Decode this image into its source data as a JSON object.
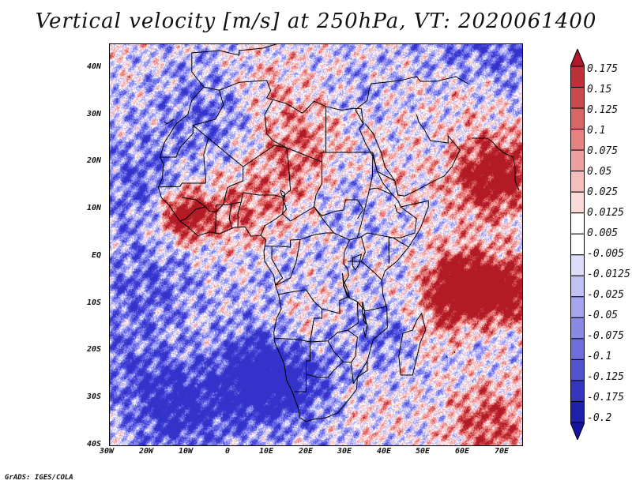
{
  "title": "Vertical velocity [m/s] at 250hPa, VT: 2020061400",
  "footer": "GrADS: IGES/COLA",
  "map": {
    "lat_labels": [
      "40N",
      "30N",
      "20N",
      "10N",
      "EQ",
      "10S",
      "20S",
      "30S",
      "40S"
    ],
    "lon_labels": [
      "30W",
      "20W",
      "10W",
      "0",
      "10E",
      "20E",
      "30E",
      "40E",
      "50E",
      "60E",
      "70E"
    ],
    "lon_range": [
      -30,
      75
    ],
    "lat_range": [
      -40,
      45
    ]
  },
  "colorbar": {
    "labels": [
      "0.175",
      "0.15",
      "0.125",
      "0.1",
      "0.075",
      "0.05",
      "0.025",
      "0.0125",
      "0.005",
      "-0.005",
      "-0.0125",
      "-0.025",
      "-0.05",
      "-0.075",
      "-0.1",
      "-0.125",
      "-0.175",
      "-0.2"
    ],
    "colors": [
      "#b2182b",
      "#c0303a",
      "#cc4a4f",
      "#d86666",
      "#e48282",
      "#ee9f9f",
      "#f6bdbd",
      "#fbdada",
      "#ffffff",
      "#ffffff",
      "#dcdcfb",
      "#c1c1f6",
      "#a5a5ee",
      "#8a8ae6",
      "#6e6edc",
      "#5252d0",
      "#3535c0",
      "#1f1fae",
      "#1414a0"
    ]
  }
}
